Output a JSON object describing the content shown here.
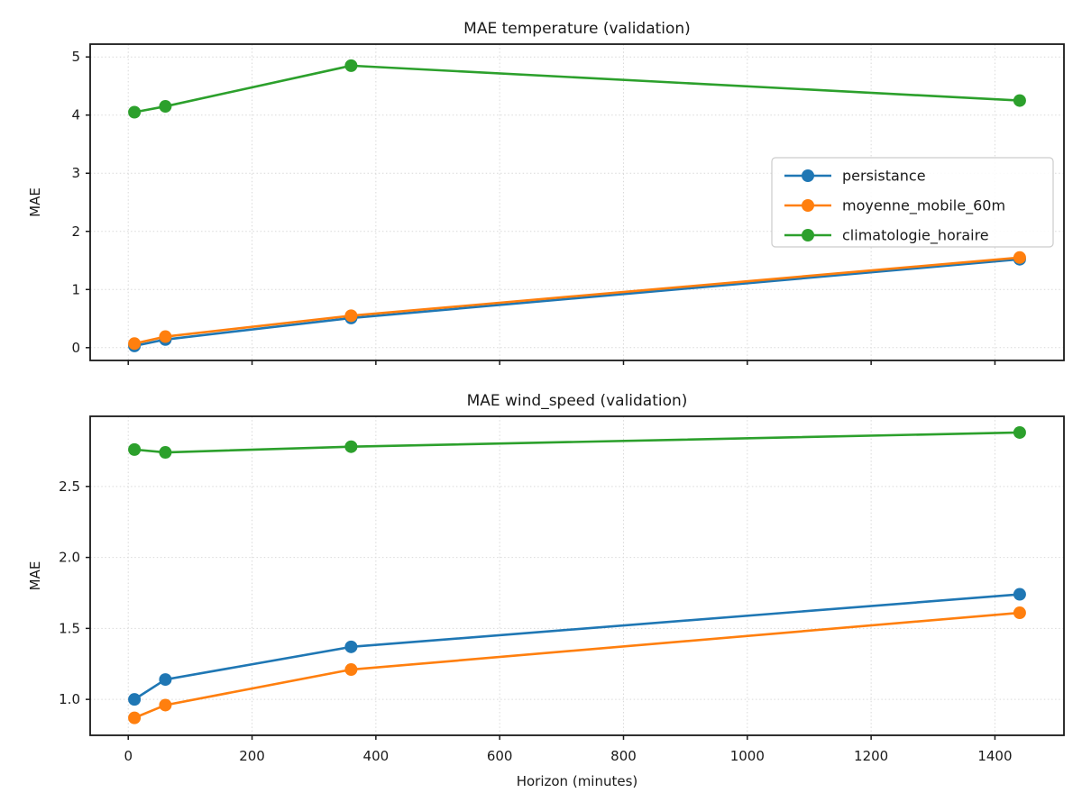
{
  "figure": {
    "background": "#ffffff",
    "spine_color": "#1a1a1a",
    "grid_color": "#d9d9d9",
    "text_color": "#1a1a1a",
    "legend_frame_color": "#cccccc",
    "series_colors": {
      "persistance": "#1f77b4",
      "moyenne_mobile_60m": "#ff7f0e",
      "climatologie_horaire": "#2ca02c"
    }
  },
  "chart_data": [
    {
      "type": "line",
      "title": "MAE temperature (validation)",
      "xlabel": "",
      "ylabel": "MAE",
      "x": [
        10,
        60,
        360,
        1440
      ],
      "series": [
        {
          "name": "persistance",
          "color": "#1f77b4",
          "values": [
            0.03,
            0.14,
            0.51,
            1.52
          ]
        },
        {
          "name": "moyenne_mobile_60m",
          "color": "#ff7f0e",
          "values": [
            0.07,
            0.19,
            0.55,
            1.55
          ]
        },
        {
          "name": "climatologie_horaire",
          "color": "#2ca02c",
          "values": [
            4.05,
            4.15,
            4.85,
            4.25
          ]
        }
      ],
      "xticks": [
        0,
        200,
        400,
        600,
        800,
        1000,
        1200,
        1400
      ],
      "xtick_labels": [
        "0",
        "200",
        "400",
        "600",
        "800",
        "1000",
        "1200",
        "1400"
      ],
      "show_x_tick_labels": false,
      "yticks": [
        0,
        1,
        2,
        3,
        4,
        5
      ],
      "ytick_labels": [
        "0",
        "1",
        "2",
        "3",
        "4",
        "5"
      ],
      "xlim": [
        -61.5,
        1511.5
      ],
      "ylim": [
        -0.22,
        5.22
      ],
      "grid": true,
      "legend": {
        "visible": true,
        "position": "center-right",
        "entries": [
          "persistance",
          "moyenne_mobile_60m",
          "climatologie_horaire"
        ]
      }
    },
    {
      "type": "line",
      "title": "MAE wind_speed (validation)",
      "xlabel": "Horizon (minutes)",
      "ylabel": "MAE",
      "x": [
        10,
        60,
        360,
        1440
      ],
      "series": [
        {
          "name": "persistance",
          "color": "#1f77b4",
          "values": [
            1.0,
            1.14,
            1.37,
            1.74
          ]
        },
        {
          "name": "moyenne_mobile_60m",
          "color": "#ff7f0e",
          "values": [
            0.87,
            0.96,
            1.21,
            1.61
          ]
        },
        {
          "name": "climatologie_horaire",
          "color": "#2ca02c",
          "values": [
            2.76,
            2.74,
            2.78,
            2.88
          ]
        }
      ],
      "xticks": [
        0,
        200,
        400,
        600,
        800,
        1000,
        1200,
        1400
      ],
      "xtick_labels": [
        "0",
        "200",
        "400",
        "600",
        "800",
        "1000",
        "1200",
        "1400"
      ],
      "show_x_tick_labels": true,
      "yticks": [
        1.0,
        1.5,
        2.0,
        2.5
      ],
      "ytick_labels": [
        "1.0",
        "1.5",
        "2.0",
        "2.5"
      ],
      "xlim": [
        -61.5,
        1511.5
      ],
      "ylim": [
        0.747,
        2.994
      ],
      "grid": true,
      "legend": {
        "visible": false,
        "position": "",
        "entries": []
      }
    }
  ]
}
